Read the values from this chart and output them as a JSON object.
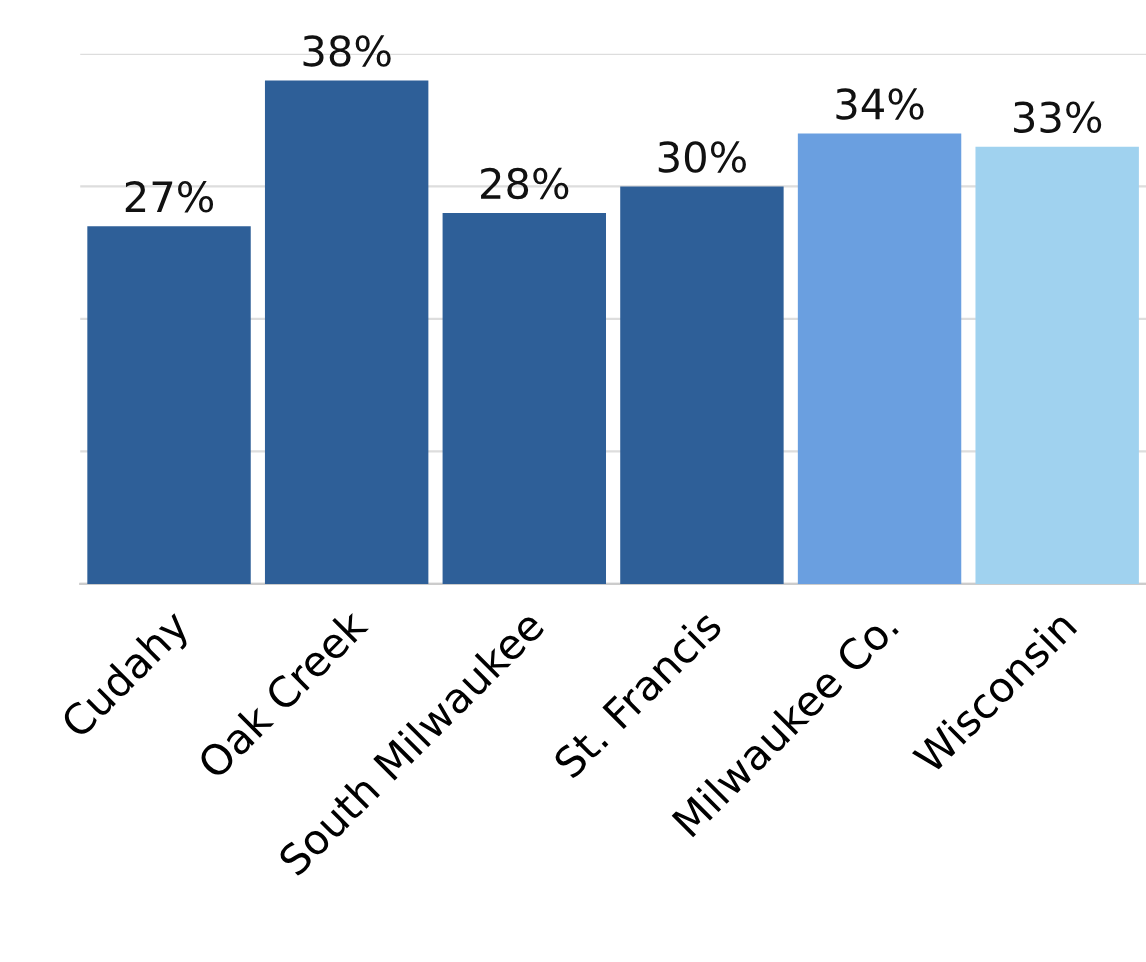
{
  "chart_data": {
    "type": "bar",
    "categories": [
      "Cudahy",
      "Oak Creek",
      "South Milwaukee",
      "St. Francis",
      "Milwaukee Co.",
      "Wisconsin"
    ],
    "values": [
      27,
      38,
      28,
      30,
      34,
      33
    ],
    "value_labels": [
      "27%",
      "38%",
      "28%",
      "30%",
      "34%",
      "33%"
    ],
    "colors": [
      "#2e5f98",
      "#2e5f98",
      "#2e5f98",
      "#2e5f98",
      "#6a9fe0",
      "#a0d2ef"
    ],
    "ylim": [
      0,
      40
    ],
    "yticks": [
      {
        "value": 0,
        "label": null
      },
      {
        "value": 10,
        "label": null
      },
      {
        "value": 20,
        "label": null
      },
      {
        "value": 30,
        "label": null
      },
      {
        "value": 40,
        "label": null
      }
    ],
    "tick_labels": "x",
    "grid": "y"
  }
}
